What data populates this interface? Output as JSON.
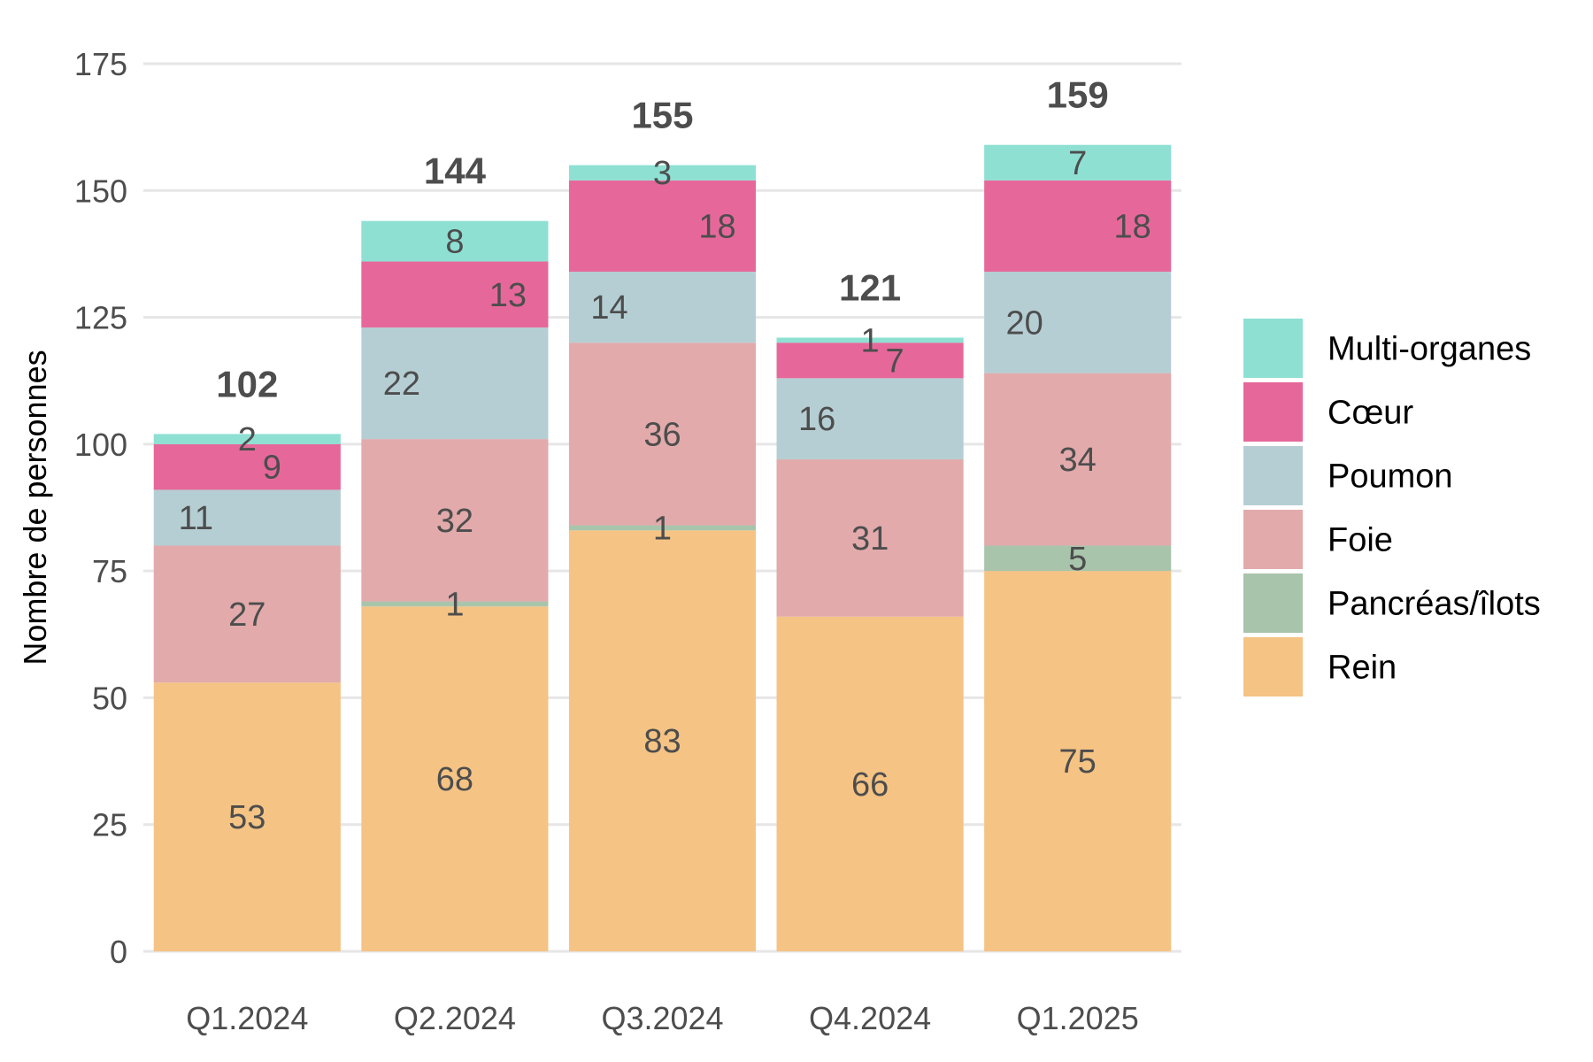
{
  "chart_data": {
    "type": "bar",
    "stacked": true,
    "title": "",
    "xlabel": "",
    "ylabel": "Nombre de personnes",
    "ylim": [
      0,
      175
    ],
    "yticks": [
      "0",
      "25",
      "50",
      "75",
      "100",
      "125",
      "150",
      "175"
    ],
    "grid": true,
    "legend_position": "right",
    "categories": [
      "Q1.2024",
      "Q2.2024",
      "Q3.2024",
      "Q4.2024",
      "Q1.2025"
    ],
    "totals": [
      102,
      144,
      155,
      121,
      159
    ],
    "series": [
      {
        "name": "Rein",
        "color": "#f5c384",
        "values": [
          53,
          68,
          83,
          66,
          75
        ]
      },
      {
        "name": "Pancréas/îlots",
        "color": "#a8c4ab",
        "values": [
          0,
          1,
          1,
          0,
          5
        ]
      },
      {
        "name": "Foie",
        "color": "#e2aaab",
        "values": [
          27,
          32,
          36,
          31,
          34
        ]
      },
      {
        "name": "Poumon",
        "color": "#b5ced3",
        "values": [
          11,
          22,
          14,
          16,
          20
        ]
      },
      {
        "name": "Cœur",
        "color": "#e6689a",
        "values": [
          9,
          13,
          18,
          7,
          18
        ]
      },
      {
        "name": "Multi-organes",
        "color": "#8ee0d3",
        "values": [
          2,
          8,
          3,
          1,
          7
        ]
      }
    ],
    "legend_order": [
      "Multi-organes",
      "Cœur",
      "Poumon",
      "Foie",
      "Pancréas/îlots",
      "Rein"
    ]
  }
}
